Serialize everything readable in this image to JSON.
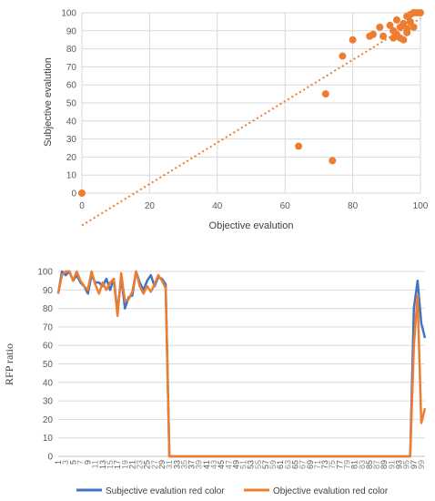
{
  "chart_data": [
    {
      "type": "scatter",
      "title": "",
      "xlabel": "Objective evalution",
      "ylabel": "Subjective evalution",
      "xlim": [
        0,
        100
      ],
      "ylim": [
        0,
        100
      ],
      "x_ticks": [
        "0",
        "20",
        "40",
        "60",
        "80",
        "100"
      ],
      "y_ticks": [
        "0",
        "10",
        "20",
        "30",
        "40",
        "50",
        "60",
        "70",
        "80",
        "90",
        "100"
      ],
      "grid": true,
      "trendline": "linear (dotted)",
      "color": "#ED7D31",
      "points": [
        [
          0,
          0
        ],
        [
          64,
          26
        ],
        [
          72,
          55
        ],
        [
          74,
          18
        ],
        [
          77,
          76
        ],
        [
          80,
          85
        ],
        [
          85,
          87
        ],
        [
          86,
          88
        ],
        [
          88,
          92
        ],
        [
          89,
          87
        ],
        [
          92,
          90
        ],
        [
          93,
          96
        ],
        [
          93,
          88
        ],
        [
          94,
          92
        ],
        [
          94,
          86
        ],
        [
          95,
          85
        ],
        [
          95,
          94
        ],
        [
          96,
          91
        ],
        [
          96,
          98
        ],
        [
          97,
          95
        ],
        [
          97,
          99
        ],
        [
          98,
          92
        ],
        [
          98,
          100
        ],
        [
          99,
          100
        ],
        [
          100,
          100
        ],
        [
          91,
          93
        ],
        [
          92,
          86
        ],
        [
          96,
          89
        ]
      ]
    },
    {
      "type": "line",
      "title": "",
      "xlabel": "",
      "ylabel": "RFP ratio",
      "ylim": [
        0,
        100
      ],
      "y_ticks": [
        "0",
        "10",
        "20",
        "30",
        "40",
        "50",
        "60",
        "70",
        "80",
        "90",
        "100"
      ],
      "x_ticks": [
        "1",
        "5",
        "9",
        "13",
        "17",
        "21",
        "25",
        "29",
        "33",
        "37",
        "41",
        "45",
        "49",
        "53",
        "57",
        "61",
        "65",
        "69",
        "73",
        "77",
        "81",
        "85",
        "89",
        "93",
        "97"
      ],
      "x_ticks_minor": [
        "3",
        "7",
        "11",
        "15",
        "19",
        "23",
        "27",
        "31",
        "35",
        "39",
        "43",
        "47",
        "51",
        "55",
        "59",
        "63",
        "67",
        "71",
        "75",
        "79",
        "83",
        "87",
        "91",
        "95",
        "99"
      ],
      "x_count": 100,
      "grid": true,
      "legend_position": "bottom",
      "series": [
        {
          "name": "Subjective evalution red color",
          "color": "#4472C4",
          "values": [
            88,
            100,
            98,
            100,
            95,
            98,
            94,
            92,
            88,
            98,
            94,
            94,
            92,
            96,
            90,
            96,
            78,
            97,
            80,
            86,
            87,
            100,
            94,
            90,
            95,
            98,
            92,
            97,
            96,
            93,
            0,
            0,
            0,
            0,
            0,
            0,
            0,
            0,
            0,
            0,
            0,
            0,
            0,
            0,
            0,
            0,
            0,
            0,
            0,
            0,
            0,
            0,
            0,
            0,
            0,
            0,
            0,
            0,
            0,
            0,
            0,
            0,
            0,
            0,
            0,
            0,
            0,
            0,
            0,
            0,
            0,
            0,
            0,
            0,
            0,
            0,
            0,
            0,
            0,
            0,
            0,
            0,
            0,
            0,
            0,
            0,
            0,
            0,
            0,
            0,
            0,
            0,
            0,
            0,
            0,
            0,
            80,
            95,
            72,
            64
          ]
        },
        {
          "name": "Objective evalution red color",
          "color": "#ED7D31",
          "values": [
            88,
            98,
            100,
            100,
            95,
            100,
            95,
            92,
            90,
            100,
            93,
            88,
            94,
            90,
            94,
            96,
            76,
            99,
            84,
            85,
            89,
            100,
            92,
            88,
            92,
            89,
            93,
            98,
            95,
            91,
            0,
            0,
            0,
            0,
            0,
            0,
            0,
            0,
            0,
            0,
            0,
            0,
            0,
            0,
            0,
            0,
            0,
            0,
            0,
            0,
            0,
            0,
            0,
            0,
            0,
            0,
            0,
            0,
            0,
            0,
            0,
            0,
            0,
            0,
            0,
            0,
            0,
            0,
            0,
            0,
            0,
            0,
            0,
            0,
            0,
            0,
            0,
            0,
            0,
            0,
            0,
            0,
            0,
            0,
            0,
            0,
            0,
            0,
            0,
            0,
            0,
            0,
            0,
            0,
            0,
            0,
            60,
            87,
            18,
            26
          ]
        }
      ]
    }
  ]
}
